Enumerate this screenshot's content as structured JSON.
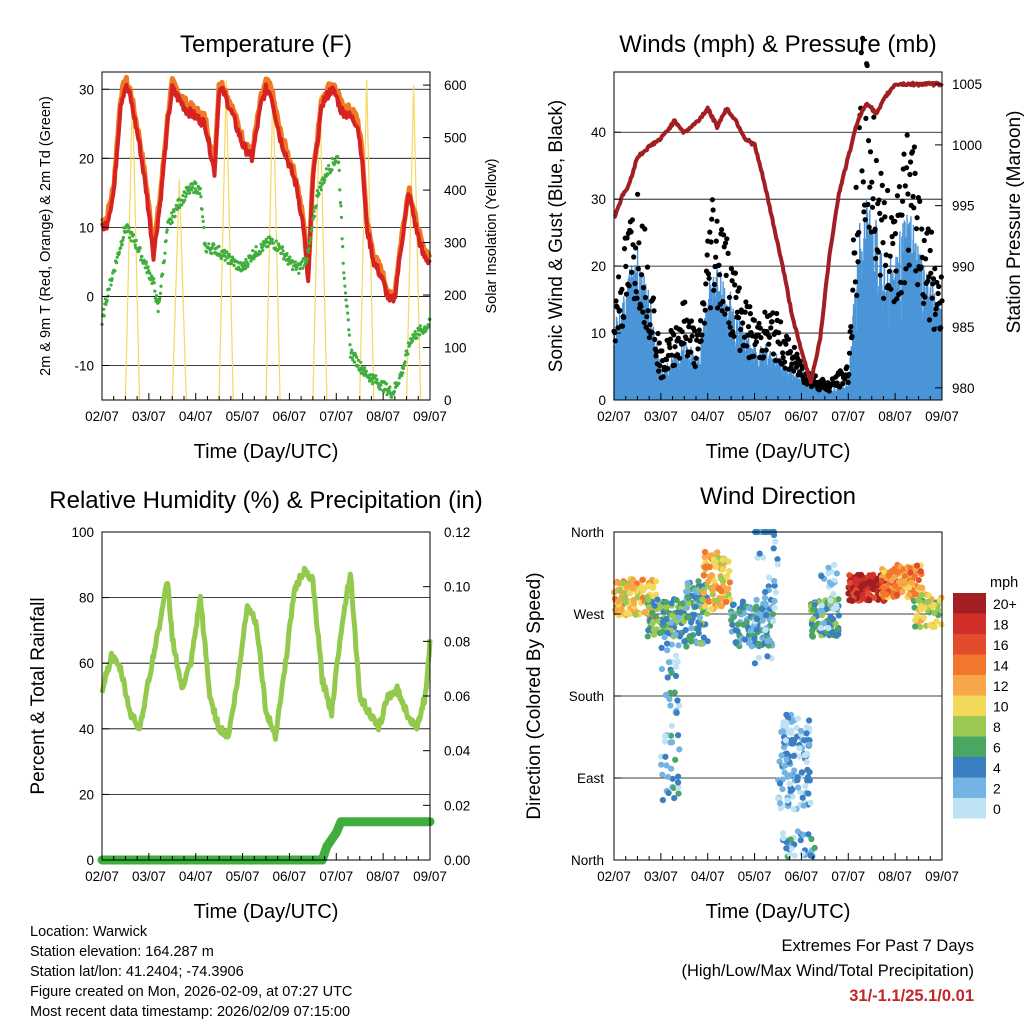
{
  "footer": {
    "location": "Location: Warwick",
    "elevation": "Station elevation: 164.287 m",
    "latlon": "Station lat/lon: 41.2404; -74.3906",
    "created": "Figure created on Mon, 2026-02-09, at 07:27 UTC",
    "recent": "Most recent data timestamp: 2026/02/09 07:15:00",
    "extremes_title": "Extremes For Past 7 Days",
    "extremes_sub": "(High/Low/Max Wind/Total Precipitation)",
    "extremes_values": "31/-1.1/25.1/0.01"
  },
  "chart_data": [
    {
      "type": "line",
      "id": "temperature",
      "title": "Temperature (F)",
      "xlabel": "Time (Day/UTC)",
      "ylabel": "2m & 9m T (Red, Orange) & 2m Td (Green)",
      "y2label": "Solar Insolation (Yellow)",
      "ylim": [
        -15,
        32.5
      ],
      "y2lim": [
        0,
        625
      ],
      "yticks": [
        "30",
        "20",
        "10",
        "0",
        "-10"
      ],
      "y2ticks": [
        "600",
        "500",
        "400",
        "300",
        "200",
        "100",
        "0"
      ],
      "xticks": [
        "02/07",
        "03/07",
        "04/07",
        "05/07",
        "06/07",
        "07/07",
        "08/07",
        "09/07"
      ],
      "colors": {
        "t2m": "#d62222",
        "t9m": "#f07a24",
        "td": "#3fae3c",
        "solar": "#f6d860"
      },
      "series": [
        {
          "name": "2m T",
          "x": [
            0,
            0.1,
            0.25,
            0.4,
            0.5,
            0.6,
            0.8,
            0.95,
            1.1,
            1.25,
            1.4,
            1.5,
            1.6,
            1.8,
            2.0,
            2.2,
            2.4,
            2.5,
            2.6,
            2.8,
            3.0,
            3.2,
            3.4,
            3.5,
            3.6,
            3.8,
            4.0,
            4.15,
            4.3,
            4.4,
            4.5,
            4.7,
            4.9,
            5.0,
            5.1,
            5.3,
            5.45,
            5.55,
            5.65,
            5.8,
            5.95,
            6.05,
            6.15,
            6.25,
            6.4,
            6.55,
            6.7,
            6.85,
            7.0
          ],
          "values": [
            10,
            10.5,
            15,
            28,
            30.5,
            29,
            22,
            15,
            6,
            14,
            25,
            30,
            29,
            27,
            26,
            25,
            18,
            30,
            29.5,
            26,
            22,
            20,
            28,
            30,
            29.5,
            23,
            19,
            16,
            10,
            2,
            17,
            28,
            30,
            29,
            27,
            26,
            25,
            20,
            10,
            5,
            3,
            1,
            -1,
            0,
            8,
            15,
            10,
            6,
            5
          ]
        },
        {
          "name": "2m Td",
          "x": [
            0,
            0.1,
            0.3,
            0.5,
            0.7,
            0.9,
            1.1,
            1.2,
            1.4,
            1.6,
            1.8,
            2.0,
            2.1,
            2.2,
            2.4,
            2.6,
            2.8,
            3.0,
            3.2,
            3.4,
            3.6,
            3.8,
            4.0,
            4.2,
            4.4,
            4.6,
            4.8,
            5.0,
            5.05,
            5.15,
            5.3,
            5.6,
            5.8,
            6.0,
            6.2,
            6.4,
            6.6,
            7.0
          ],
          "values": [
            -4,
            0,
            5,
            10,
            8,
            5,
            2,
            -2,
            10,
            13,
            15,
            16,
            15,
            7,
            7,
            6,
            5,
            4,
            6,
            7,
            8,
            7,
            5,
            4,
            6,
            15,
            18,
            20,
            20,
            5,
            -8,
            -11,
            -12,
            -13,
            -14,
            -11,
            -6,
            -4
          ]
        },
        {
          "name": "Solar Insolation",
          "x": [
            0,
            0.5,
            0.65,
            0.8,
            1.5,
            1.65,
            1.8,
            2.5,
            2.65,
            2.8,
            3.5,
            3.65,
            3.8,
            4.5,
            4.65,
            4.8,
            5.5,
            5.65,
            5.8,
            6.5,
            6.65,
            6.8,
            7.0
          ],
          "values": [
            0,
            0,
            590,
            0,
            0,
            420,
            0,
            0,
            610,
            0,
            0,
            600,
            0,
            0,
            580,
            0,
            0,
            610,
            0,
            0,
            600,
            0,
            0
          ]
        }
      ]
    },
    {
      "type": "scatter",
      "id": "winds",
      "title": "Winds (mph) & Pressure (mb)",
      "xlabel": "Time (Day/UTC)",
      "ylabel": "Sonic Wind & Gust (Blue, Black)",
      "y2label": "Station Pressure (Maroon)",
      "ylim": [
        0,
        49
      ],
      "y2lim": [
        979,
        1006
      ],
      "yticks": [
        "40",
        "30",
        "20",
        "10",
        "0"
      ],
      "y2ticks": [
        "1005",
        "1000",
        "995",
        "990",
        "985",
        "980"
      ],
      "xticks": [
        "02/07",
        "03/07",
        "04/07",
        "05/07",
        "06/07",
        "07/07",
        "08/07",
        "09/07"
      ],
      "colors": {
        "wind": "#4a94d8",
        "gust": "#000000",
        "pressure": "#a11f22"
      },
      "series": [
        {
          "name": "Pressure",
          "x": [
            0,
            0.2,
            0.3,
            0.5,
            0.8,
            1.0,
            1.3,
            1.5,
            1.8,
            2.0,
            2.2,
            2.4,
            2.6,
            2.8,
            3.0,
            3.2,
            3.4,
            3.6,
            3.8,
            4.0,
            4.2,
            4.4,
            4.6,
            4.8,
            5.0,
            5.2,
            5.4,
            5.6,
            5.8,
            6.0,
            6.2,
            6.4,
            6.6,
            6.8,
            7.0
          ],
          "values": [
            994,
            996,
            996.5,
            999,
            1000,
            1000.5,
            1002,
            1001,
            1002,
            1003,
            1001.5,
            1003,
            1002,
            1000.5,
            1000,
            997,
            993.5,
            990,
            986,
            983,
            980.5,
            984,
            991,
            996,
            999,
            1002,
            1003.5,
            1002.5,
            1004,
            1005,
            1005,
            1005,
            1005,
            1005,
            1005
          ]
        },
        {
          "name": "Sonic Wind",
          "x": [
            0,
            0.5,
            0.8,
            1.0,
            1.5,
            1.8,
            2.1,
            2.4,
            2.7,
            3.0,
            3.4,
            3.8,
            4.2,
            4.6,
            5.0,
            5.1,
            5.3,
            5.6,
            5.8,
            6.0,
            6.3,
            6.6,
            7.0
          ],
          "values": [
            8,
            16,
            10,
            3,
            6,
            4,
            15,
            12,
            8,
            6,
            5,
            3,
            2,
            1,
            2,
            9,
            22,
            18,
            14,
            16,
            20,
            14,
            10
          ]
        },
        {
          "name": "Gust",
          "x": [
            0,
            0.5,
            0.8,
            1.0,
            1.5,
            1.8,
            2.1,
            2.4,
            2.7,
            3.0,
            3.4,
            3.8,
            4.2,
            4.6,
            5.0,
            5.1,
            5.3,
            5.6,
            5.8,
            6.0,
            6.3,
            6.6,
            7.0
          ],
          "values": [
            12,
            24,
            14,
            5,
            11,
            7,
            24,
            18,
            12,
            9,
            10,
            6,
            3,
            2,
            4,
            16,
            40,
            30,
            22,
            24,
            30,
            22,
            14
          ]
        }
      ]
    },
    {
      "type": "line",
      "id": "humidity",
      "title": "Relative Humidity (%) & Precipitation (in)",
      "xlabel": "Time (Day/UTC)",
      "ylabel": "Percent & Total Rainfall",
      "ylim": [
        0,
        100
      ],
      "y2lim": [
        0,
        0.12
      ],
      "yticks": [
        "100",
        "80",
        "60",
        "40",
        "20",
        "0"
      ],
      "y2ticks": [
        "0.12",
        "0.10",
        "0.08",
        "0.06",
        "0.04",
        "0.02",
        "0.00"
      ],
      "xticks": [
        "02/07",
        "03/07",
        "04/07",
        "05/07",
        "06/07",
        "07/07",
        "08/07",
        "09/07"
      ],
      "colors": {
        "rh": "#93c94d",
        "precip": "#3fae3c"
      },
      "series": [
        {
          "name": "Relative Humidity",
          "x": [
            0,
            0.2,
            0.4,
            0.6,
            0.8,
            1.0,
            1.2,
            1.4,
            1.5,
            1.7,
            1.9,
            2.1,
            2.3,
            2.5,
            2.7,
            2.9,
            3.1,
            3.3,
            3.5,
            3.7,
            3.9,
            4.1,
            4.3,
            4.5,
            4.7,
            4.9,
            5.1,
            5.3,
            5.5,
            5.7,
            5.9,
            6.1,
            6.3,
            6.5,
            6.7,
            6.9,
            7.0
          ],
          "values": [
            52,
            62,
            58,
            45,
            40,
            55,
            70,
            85,
            68,
            52,
            60,
            80,
            50,
            40,
            38,
            55,
            78,
            72,
            45,
            38,
            58,
            82,
            88,
            85,
            55,
            45,
            70,
            88,
            50,
            45,
            40,
            50,
            52,
            45,
            40,
            50,
            66
          ]
        },
        {
          "name": "Precipitation",
          "x": [
            0,
            4.7,
            4.8,
            5.0,
            5.1,
            7.0
          ],
          "values": [
            0,
            0,
            0.005,
            0.01,
            0.014,
            0.014
          ]
        }
      ]
    },
    {
      "type": "scatter",
      "id": "wind_direction",
      "title": "Wind Direction",
      "xlabel": "Time (Day/UTC)",
      "ylabel": "Direction (Colored By Speed)",
      "yticks": [
        "North",
        "West",
        "South",
        "East",
        "North"
      ],
      "xticks": [
        "02/07",
        "03/07",
        "04/07",
        "05/07",
        "06/07",
        "07/07",
        "08/07",
        "09/07"
      ],
      "legend_title": "mph",
      "legend_labels": [
        "20+",
        "18",
        "16",
        "14",
        "12",
        "10",
        "8",
        "6",
        "4",
        "2",
        "0"
      ],
      "legend_colors": [
        "#a11f22",
        "#d12f2a",
        "#e24b2c",
        "#f2772e",
        "#f7a748",
        "#f3d95a",
        "#9cc954",
        "#4aa663",
        "#3a7fc1",
        "#73b4e4",
        "#bfe2f5"
      ]
    }
  ]
}
